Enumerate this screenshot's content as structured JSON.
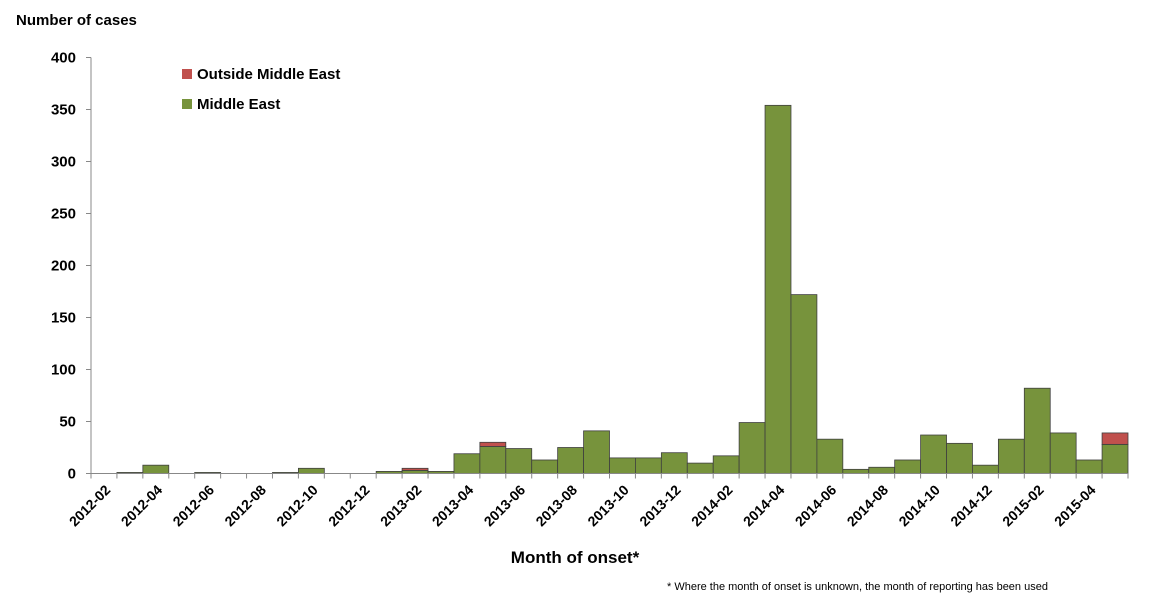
{
  "chart_data": {
    "type": "bar",
    "stacked": true,
    "ylabel": "Number of cases",
    "xlabel": "Month of onset*",
    "footnote": "* Where the month of onset is unknown, the month of reporting has been used",
    "ylim": [
      0,
      400
    ],
    "yticks": [
      0,
      50,
      100,
      150,
      200,
      250,
      300,
      350,
      400
    ],
    "grid": false,
    "legend_position": "top-left",
    "categories": [
      "2012-02",
      "2012-03",
      "2012-04",
      "2012-05",
      "2012-06",
      "2012-07",
      "2012-08",
      "2012-09",
      "2012-10",
      "2012-11",
      "2012-12",
      "2013-01",
      "2013-02",
      "2013-03",
      "2013-04",
      "2013-05",
      "2013-06",
      "2013-07",
      "2013-08",
      "2013-09",
      "2013-10",
      "2013-11",
      "2013-12",
      "2014-01",
      "2014-02",
      "2014-03",
      "2014-04",
      "2014-05",
      "2014-06",
      "2014-07",
      "2014-08",
      "2014-09",
      "2014-10",
      "2014-11",
      "2014-12",
      "2015-01",
      "2015-02",
      "2015-03",
      "2015-04",
      "2015-05"
    ],
    "xtick_labels": [
      "2012-02",
      "2012-04",
      "2012-06",
      "2012-08",
      "2012-10",
      "2012-12",
      "2013-02",
      "2013-04",
      "2013-06",
      "2013-08",
      "2013-10",
      "2013-12",
      "2014-02",
      "2014-04",
      "2014-06",
      "2014-08",
      "2014-10",
      "2014-12",
      "2015-02",
      "2015-04"
    ],
    "series": [
      {
        "name": "Middle East",
        "color": "#77933c",
        "values": [
          0,
          1,
          8,
          0,
          1,
          0,
          0,
          1,
          5,
          0,
          0,
          2,
          3,
          2,
          19,
          26,
          24,
          13,
          25,
          41,
          15,
          15,
          20,
          10,
          17,
          49,
          354,
          172,
          33,
          4,
          6,
          13,
          37,
          29,
          8,
          33,
          82,
          39,
          13,
          28
        ]
      },
      {
        "name": "Outside Middle East",
        "color": "#c0504d",
        "values": [
          0,
          0,
          0,
          0,
          0,
          0,
          0,
          0,
          0,
          0,
          0,
          0,
          2,
          0,
          0,
          4,
          0,
          0,
          0,
          0,
          0,
          0,
          0,
          0,
          0,
          0,
          0,
          0,
          0,
          0,
          0,
          0,
          0,
          0,
          0,
          0,
          0,
          0,
          0,
          11
        ]
      }
    ],
    "legend": [
      {
        "name": "Outside Middle East",
        "color": "#c0504d"
      },
      {
        "name": "Middle East",
        "color": "#77933c"
      }
    ]
  }
}
